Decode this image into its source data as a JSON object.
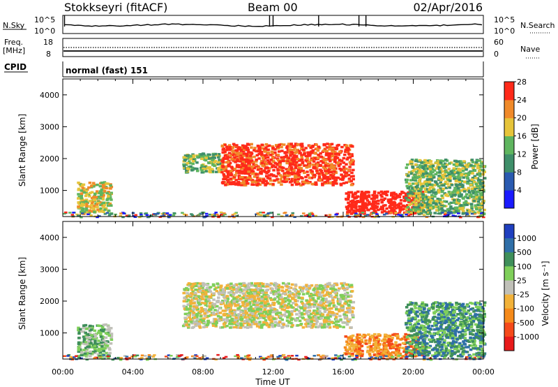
{
  "header": {
    "station": "Stokkseyri (fitACF)",
    "beam": "Beam 00",
    "date": "02/Apr/2016"
  },
  "noise_panel": {
    "left_label": "N.Sky",
    "right_label": "N.Search",
    "y_ticks": [
      "10^5",
      "10^0"
    ]
  },
  "freq_panel": {
    "left_label_line1": "Freq.",
    "left_label_line2": "[MHz]",
    "left_ticks": [
      "18",
      "8"
    ],
    "right_ticks": [
      "60",
      "0"
    ],
    "right_label": "Nave",
    "cpid_label": "CPID"
  },
  "cpid_text": "normal (fast) 151",
  "chart_data": [
    {
      "type": "heatmap",
      "panel": "power",
      "ylabel": "Slant Range [km]",
      "xlabel": "Time UT",
      "x_ticks": [
        "00:00",
        "04:00",
        "08:00",
        "12:00",
        "16:00",
        "20:00",
        "00:00"
      ],
      "y_ticks": [
        "1000",
        "2000",
        "3000",
        "4000"
      ],
      "xlim_hours": [
        0,
        24
      ],
      "ylim_km": [
        180,
        4500
      ],
      "colorbar": {
        "label": "Power [dB]",
        "ticks": [
          "4",
          "8",
          "12",
          "16",
          "20",
          "24",
          "28"
        ],
        "colors": [
          "#1a1aff",
          "#2a5ab0",
          "#3f8f6a",
          "#5fb55f",
          "#e6c43a",
          "#f08a2a",
          "#ff2a1a"
        ]
      },
      "regions": [
        {
          "t0": 0.8,
          "t1": 2.7,
          "r0": 300,
          "r1": 1300,
          "level": 4
        },
        {
          "t0": 6.8,
          "t1": 9.0,
          "r0": 1600,
          "r1": 2200,
          "level": 3
        },
        {
          "t0": 9.0,
          "t1": 16.5,
          "r0": 1200,
          "r1": 2500,
          "level": 6
        },
        {
          "t0": 16.0,
          "t1": 20.5,
          "r0": 300,
          "r1": 1000,
          "level": 7
        },
        {
          "t0": 19.5,
          "t1": 24.0,
          "r0": 300,
          "r1": 2000,
          "level": 3
        }
      ]
    },
    {
      "type": "heatmap",
      "panel": "velocity",
      "ylabel": "Slant Range [km]",
      "xlabel": "Time UT",
      "x_ticks": [
        "00:00",
        "04:00",
        "08:00",
        "12:00",
        "16:00",
        "20:00",
        "00:00"
      ],
      "y_ticks": [
        "1000",
        "2000",
        "3000",
        "4000"
      ],
      "xlim_hours": [
        0,
        24
      ],
      "ylim_km": [
        180,
        4500
      ],
      "colorbar": {
        "label": "Velocity [m s⁻¹]",
        "ticks": [
          "1000",
          "500",
          "100",
          "25",
          "-25",
          "-100",
          "-500",
          "-1000"
        ],
        "colors": [
          "#1f3fbf",
          "#2f6fa8",
          "#3f8f5a",
          "#7fcf5a",
          "#c0c0b8",
          "#f2b23a",
          "#f58a1a",
          "#f54a1a",
          "#e81a1a"
        ]
      },
      "regions": [
        {
          "t0": 0.8,
          "t1": 2.7,
          "r0": 300,
          "r1": 1300,
          "level": 3
        },
        {
          "t0": 6.8,
          "t1": 16.5,
          "r0": 1200,
          "r1": 2600,
          "level": 4
        },
        {
          "t0": 16.0,
          "t1": 20.5,
          "r0": 300,
          "r1": 1000,
          "level": 6
        },
        {
          "t0": 19.5,
          "t1": 24.0,
          "r0": 300,
          "r1": 2000,
          "level": 2
        }
      ]
    }
  ]
}
